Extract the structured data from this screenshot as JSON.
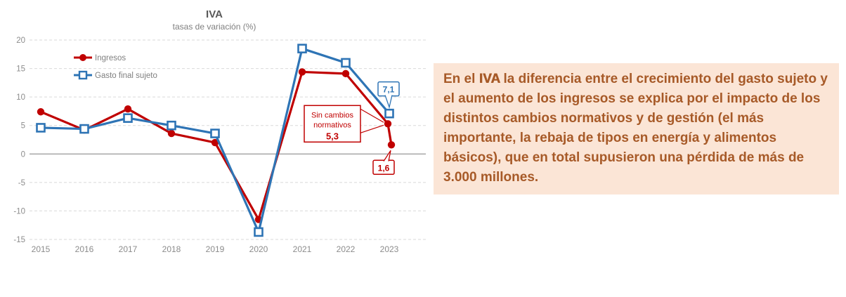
{
  "chart_data": {
    "type": "line",
    "title": "IVA",
    "subtitle": "tasas de variación (%)",
    "categories": [
      "2015",
      "2016",
      "2017",
      "2018",
      "2019",
      "2020",
      "2021",
      "2022",
      "2023"
    ],
    "ylim": [
      -15,
      20
    ],
    "yticks": [
      20,
      15,
      10,
      5,
      0,
      -5,
      -10,
      -15
    ],
    "grid": "horizontal dashed gridlines, solid zero line",
    "legend_position": "top-left inside plot",
    "grid_color": "#D9D9D9",
    "zero_line_color": "#7F7F7F",
    "axis_text_color": "#8C8C8C",
    "series": [
      {
        "name": "Ingresos",
        "color": "#C00000",
        "marker": "circle",
        "points": [
          {
            "x": "2015",
            "y": 7.4
          },
          {
            "x": "2016",
            "y": 4.2
          },
          {
            "x": "2017",
            "y": 7.9
          },
          {
            "x": "2018",
            "y": 3.6
          },
          {
            "x": "2019",
            "y": 2.0
          },
          {
            "x": "2020",
            "y": -11.5
          },
          {
            "x": "2021",
            "y": 14.4
          },
          {
            "x": "2022",
            "y": 14.1
          },
          {
            "x": "2023",
            "y": 5.3,
            "dx": -2,
            "note": "sin cambios normativos"
          },
          {
            "x": "2023",
            "y": 1.6,
            "dx": 3
          }
        ]
      },
      {
        "name": "Gasto final sujeto",
        "color": "#2E74B5",
        "marker": "square",
        "points": [
          {
            "x": "2015",
            "y": 4.6
          },
          {
            "x": "2016",
            "y": 4.4
          },
          {
            "x": "2017",
            "y": 6.3
          },
          {
            "x": "2018",
            "y": 5.0
          },
          {
            "x": "2019",
            "y": 3.6
          },
          {
            "x": "2020",
            "y": -13.7
          },
          {
            "x": "2021",
            "y": 18.5
          },
          {
            "x": "2022",
            "y": 16.0
          },
          {
            "x": "2023",
            "y": 7.1
          }
        ]
      }
    ],
    "annotations": [
      {
        "id": "gasto-final-2023",
        "text": "7,1",
        "color": "#2E74B5",
        "series": 1,
        "point": 8
      },
      {
        "id": "sin-cambios-normativos",
        "lines": [
          "Sin cambios",
          "normativos"
        ],
        "value": "5,3",
        "color": "#C00000",
        "series": 0,
        "point": 8
      },
      {
        "id": "ingresos-2023",
        "text": "1,6",
        "color": "#C00000",
        "series": 0,
        "point": 9
      }
    ]
  },
  "panel": {
    "prefix": "En el ",
    "highlight": "IVA",
    "body": " la diferencia entre el crecimiento del gasto sujeto y el aumento de los ingresos se explica por el impacto de los distintos cambios normativos y de gestión (el más importante, la rebaja de tipos en energía y alimentos básicos), que en total supusieron una pérdida de más de 3.000 millones.",
    "bg_color": "#FBE5D6",
    "text_color": "#A75A28"
  }
}
